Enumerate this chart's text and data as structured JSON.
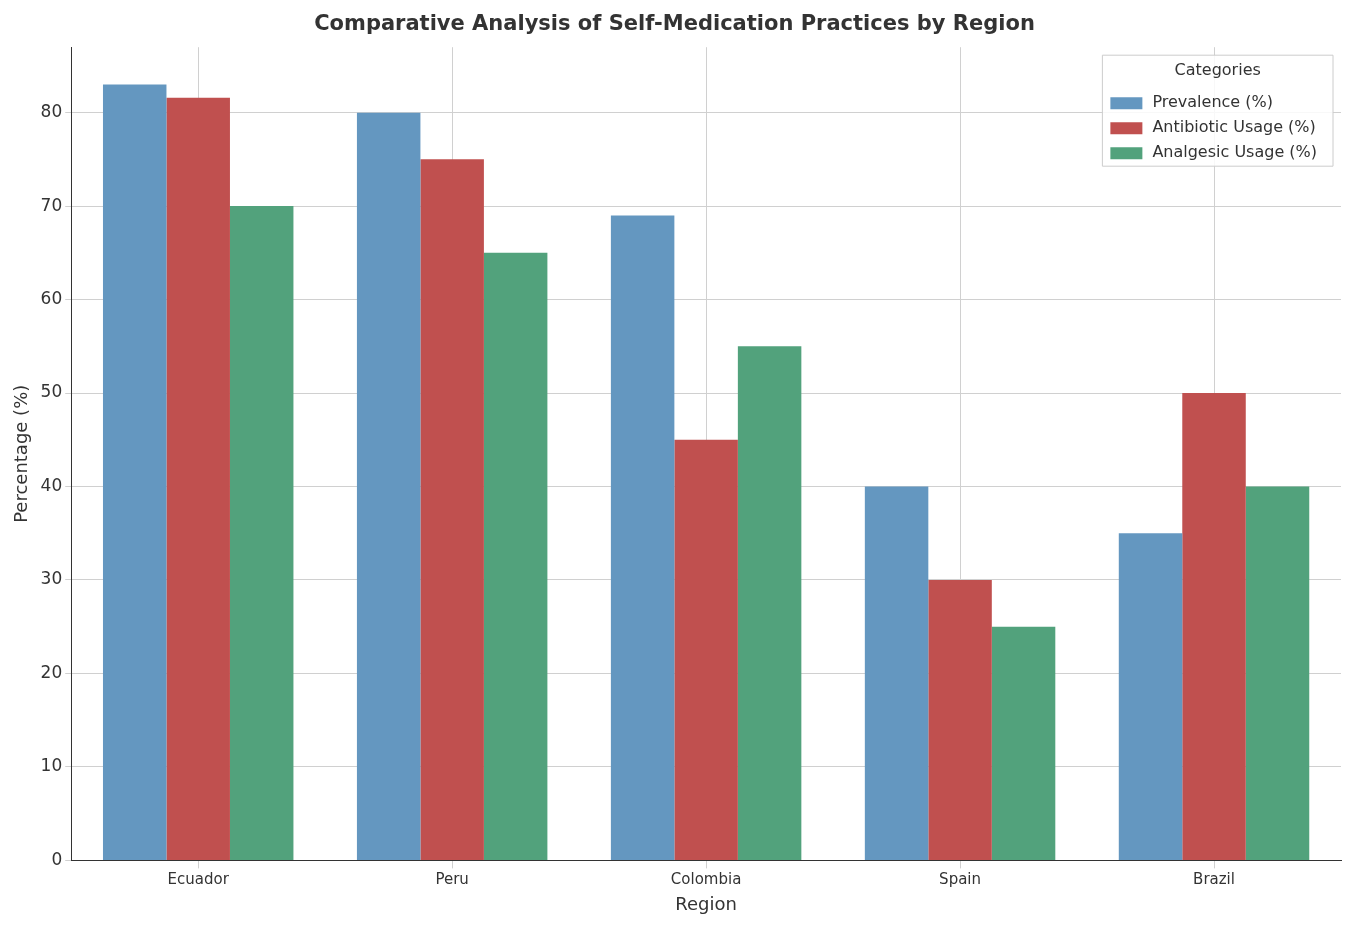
{
  "chart_data": {
    "type": "bar",
    "title": "Comparative Analysis of Self-Medication Practices by Region",
    "xlabel": "Region",
    "ylabel": "Percentage (%)",
    "legend_title": "Categories",
    "categories": [
      "Ecuador",
      "Peru",
      "Colombia",
      "Spain",
      "Brazil"
    ],
    "series": [
      {
        "name": "Prevalence (%)",
        "color": "#6497c0",
        "values": [
          83,
          80,
          69,
          40,
          35
        ]
      },
      {
        "name": "Antibiotic Usage (%)",
        "color": "#c0504f",
        "values": [
          81.6,
          75,
          45,
          30,
          50
        ]
      },
      {
        "name": "Analgesic Usage (%)",
        "color": "#52a27c",
        "values": [
          70,
          65,
          55,
          25,
          40
        ]
      }
    ],
    "ylim": [
      0,
      87
    ],
    "yticks": [
      0,
      10,
      20,
      30,
      40,
      50,
      60,
      70,
      80
    ],
    "grid": true,
    "legend": "top right"
  }
}
